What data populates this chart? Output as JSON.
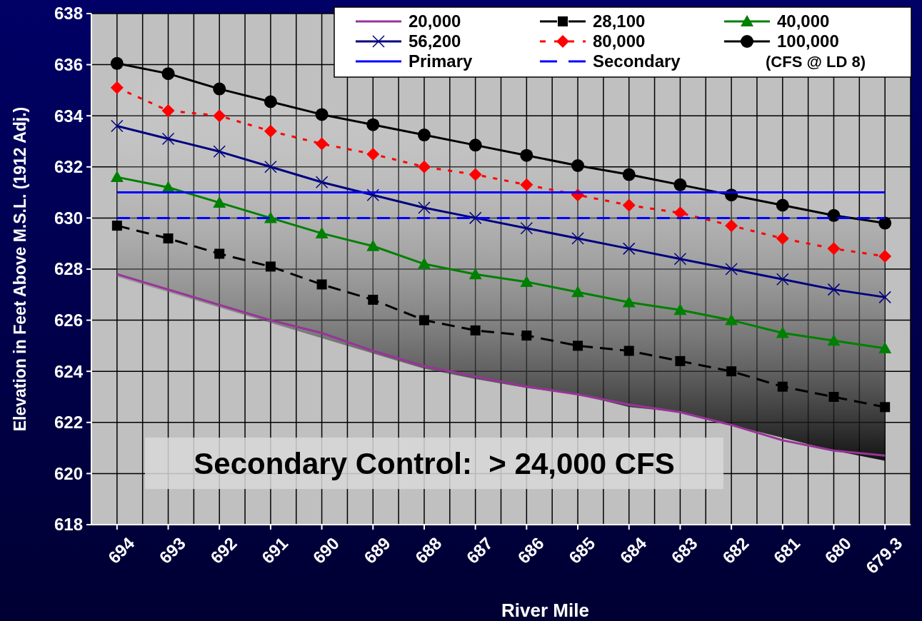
{
  "chart_data": {
    "type": "line",
    "xlabel": "River Mile",
    "ylabel": "Elevation in Feet Above M.S.L. (1912 Adj.)",
    "legend_title": "(CFS @ LD 8)",
    "annotations": [
      "Secondary Control:  > 24,000 CFS"
    ],
    "categories": [
      "694",
      "693",
      "692",
      "691",
      "690",
      "689",
      "688",
      "687",
      "686",
      "685",
      "684",
      "683",
      "682",
      "681",
      "680",
      "679.3"
    ],
    "ylim": [
      618,
      638
    ],
    "yticks": [
      618,
      620,
      622,
      624,
      626,
      628,
      630,
      632,
      634,
      636,
      638
    ],
    "grid": true,
    "legend": "top right",
    "series": [
      {
        "name": "20,000",
        "color": "#993399",
        "marker": "none",
        "line_style": "solid",
        "values": [
          627.8,
          627.2,
          626.6,
          626.0,
          625.5,
          624.8,
          624.2,
          623.8,
          623.4,
          623.1,
          622.7,
          622.4,
          621.9,
          621.3,
          620.9,
          620.7
        ]
      },
      {
        "name": "28,100",
        "color": "#000000",
        "marker": "square",
        "line_style": "dashed",
        "values": [
          629.7,
          629.2,
          628.6,
          628.1,
          627.4,
          626.8,
          626.0,
          625.6,
          625.4,
          625.0,
          624.8,
          624.4,
          624.0,
          623.4,
          623.0,
          622.6
        ]
      },
      {
        "name": "40,000",
        "color": "#008000",
        "marker": "triangle",
        "line_style": "solid",
        "values": [
          631.6,
          631.2,
          630.6,
          630.0,
          629.4,
          628.9,
          628.2,
          627.8,
          627.5,
          627.1,
          626.7,
          626.4,
          626.0,
          625.5,
          625.2,
          624.9
        ]
      },
      {
        "name": "56,200",
        "color": "#000080",
        "marker": "cross",
        "line_style": "solid",
        "values": [
          633.6,
          633.1,
          632.6,
          632.0,
          631.4,
          630.9,
          630.4,
          630.0,
          629.6,
          629.2,
          628.8,
          628.4,
          628.0,
          627.6,
          627.2,
          626.9
        ]
      },
      {
        "name": "80,000",
        "color": "#ff0000",
        "marker": "diamond",
        "line_style": "dotted",
        "values": [
          635.1,
          634.2,
          634.0,
          633.4,
          632.9,
          632.5,
          632.0,
          631.7,
          631.3,
          630.9,
          630.5,
          630.2,
          629.7,
          629.2,
          628.8,
          628.5
        ]
      },
      {
        "name": "100,000",
        "color": "#000000",
        "marker": "circle",
        "line_style": "solid",
        "values": [
          636.05,
          635.65,
          635.05,
          634.55,
          634.05,
          633.65,
          633.25,
          632.85,
          632.45,
          632.05,
          631.7,
          631.3,
          630.9,
          630.5,
          630.1,
          629.8
        ],
        "upper": [
          636.05,
          635.65,
          635.05,
          634.55,
          634.05,
          633.65,
          633.25,
          632.85,
          632.45,
          632.05,
          631.7,
          631.3,
          630.9,
          630.5,
          630.1,
          629.8
        ],
        "lower": [
          627.7,
          627.1,
          626.5,
          625.9,
          625.3,
          624.7,
          624.1,
          623.7,
          623.35,
          623.1,
          622.6,
          622.4,
          621.9,
          621.4,
          620.9,
          620.5
        ]
      },
      {
        "name": "Primary",
        "color": "#0000ff",
        "marker": "none",
        "line_style": "solid",
        "values": [
          631,
          631,
          631,
          631,
          631,
          631,
          631,
          631,
          631,
          631,
          631,
          631,
          631,
          631,
          631,
          631
        ]
      },
      {
        "name": "Secondary",
        "color": "#0000ff",
        "marker": "none",
        "line_style": "dashed",
        "values": [
          630,
          630,
          630,
          630,
          630,
          630,
          630,
          630,
          630,
          630,
          630,
          630,
          630,
          630,
          630,
          630
        ]
      }
    ]
  }
}
